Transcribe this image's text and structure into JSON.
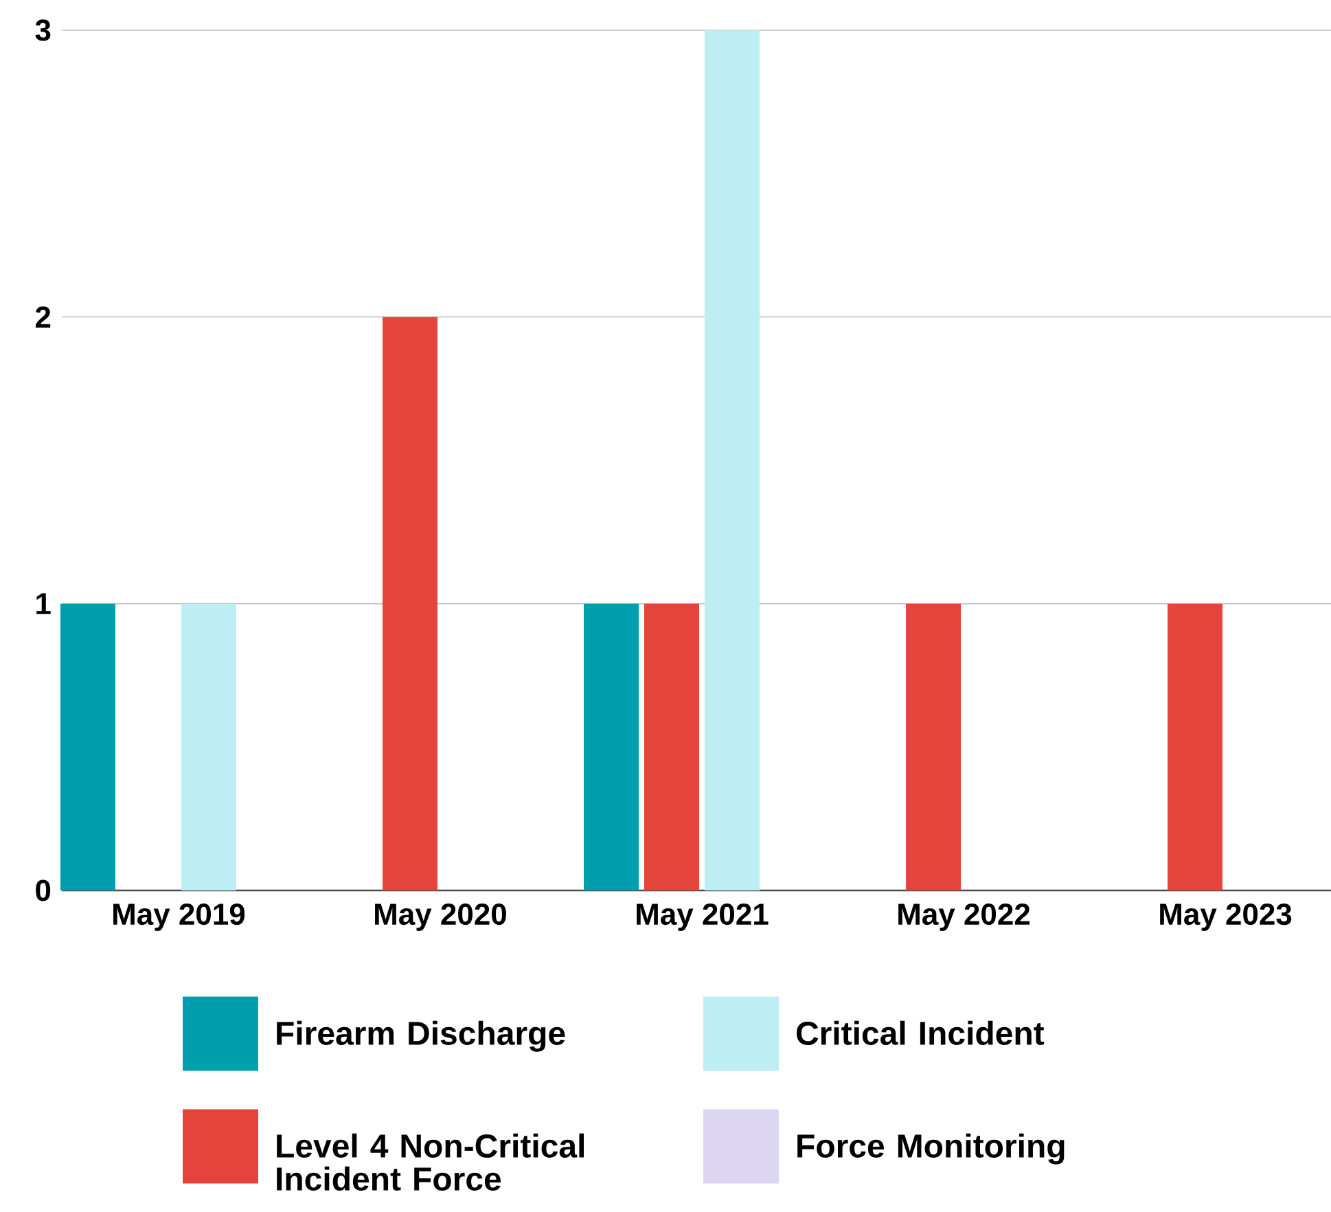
{
  "chart_data": {
    "type": "bar",
    "categories": [
      "May 2019",
      "May 2020",
      "May 2021",
      "May 2022",
      "May 2023"
    ],
    "series": [
      {
        "name": "Firearm Discharge",
        "color": "#009fae",
        "values": [
          1,
          0,
          1,
          0,
          0
        ]
      },
      {
        "name": "Level 4 Non-Critical Incident Force",
        "color": "#e5443c",
        "values": [
          0,
          2,
          1,
          1,
          1
        ]
      },
      {
        "name": "Critical Incident",
        "color": "#bdeef3",
        "values": [
          1,
          0,
          3,
          0,
          0
        ]
      },
      {
        "name": "Force Monitoring",
        "color": "#ddd6f3",
        "values": [
          0,
          0,
          0,
          0,
          0
        ]
      }
    ],
    "ylim": [
      0,
      3
    ],
    "yticks": [
      0,
      1,
      2,
      3
    ],
    "grid": "y",
    "legend": "bottom"
  }
}
